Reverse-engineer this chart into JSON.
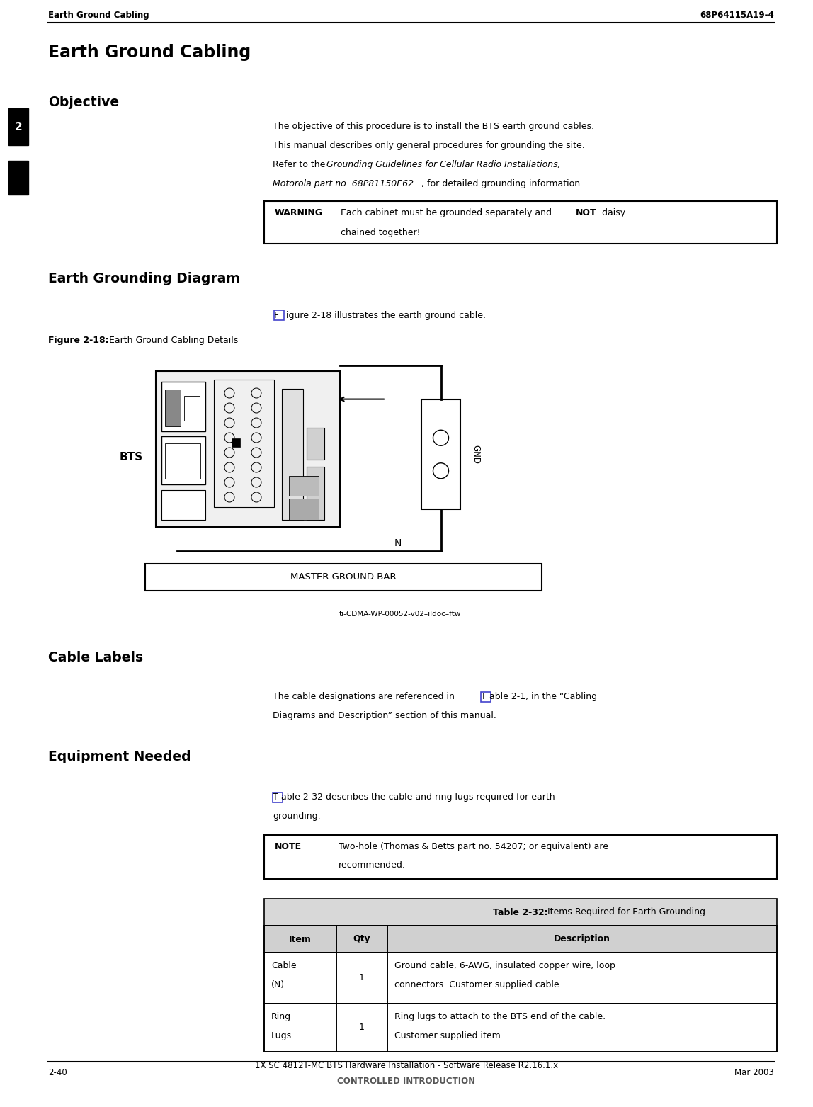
{
  "page_width": 11.48,
  "page_height": 15.63,
  "bg_color": "#ffffff",
  "header_left": "Earth Ground Cabling",
  "header_right": "68P64115A19-4",
  "footer_left": "2-40",
  "footer_center": "1X SC 4812T-MC BTS Hardware Installation - Software Release R2.16.1.x",
  "footer_center2": "CONTROLLED INTRODUCTION",
  "footer_right": "Mar 2003",
  "main_title": "Earth Ground Cabling",
  "section1_title": "Objective",
  "warning_label": "WARNING",
  "warning_bold": "NOT",
  "section2_title": "Earth Grounding Diagram",
  "figure_label": "Figure 2-18:",
  "figure_title": " Earth Ground Cabling Details",
  "diagram_bts_label": "BTS",
  "diagram_mgb_label": "MASTER GROUND BAR",
  "diagram_gnd_label": "GND",
  "diagram_n_label": "N",
  "diagram_credit": "ti-CDMA-WP-00052-v02–ildoc–ftw",
  "section3_title": "Cable Labels",
  "section4_title": "Equipment Needed",
  "note_label": "NOTE",
  "note_text1": "Two-hole (Thomas & Betts part no. 54207; or equivalent) are",
  "note_text2": "recommended.",
  "table_title_bold": "Table 2-32:",
  "table_title_rest": " Items Required for Earth Grounding",
  "table_headers": [
    "Item",
    "Qty",
    "Description"
  ],
  "table_row1_col0": "Cable\n(N)",
  "table_row1_col1": "1",
  "table_row1_col2_l1": "Ground cable, 6-AWG, insulated copper wire, loop",
  "table_row1_col2_l2": "connectors. Customer supplied cable.",
  "table_row2_col0": "Ring\nLugs",
  "table_row2_col1": "1",
  "table_row2_col2_l1": "Ring lugs to attach to the BTS end of the cable.",
  "table_row2_col2_l2": "Customer supplied item.",
  "chapter_number": "2",
  "lm": 0.68,
  "cl": 3.85,
  "cr": 10.85
}
